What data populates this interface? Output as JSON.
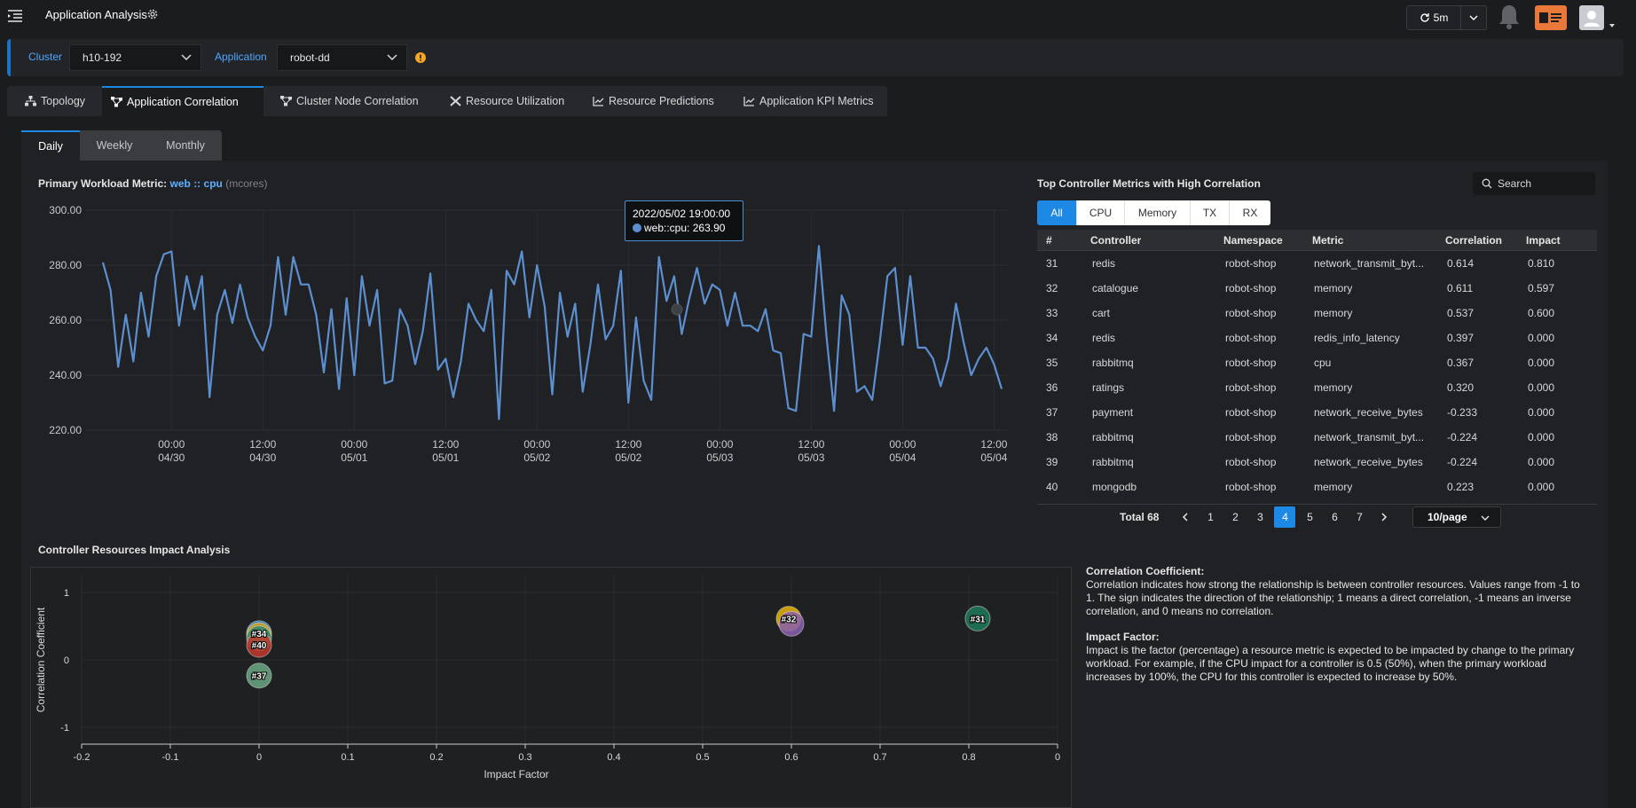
{
  "header": {
    "title": "Application Analysis",
    "refresh_label": "5m"
  },
  "filters": {
    "cluster_label": "Cluster",
    "cluster_value": "h10-192",
    "application_label": "Application",
    "application_value": "robot-dd"
  },
  "tabs": [
    {
      "label": "Topology",
      "icon": "topology-icon"
    },
    {
      "label": "Application Correlation",
      "icon": "correlation-icon",
      "active": true
    },
    {
      "label": "Cluster Node Correlation",
      "icon": "correlation-icon"
    },
    {
      "label": "Resource Utilization",
      "icon": "tools-icon"
    },
    {
      "label": "Resource Predictions",
      "icon": "line-chart-icon"
    },
    {
      "label": "Application KPI Metrics",
      "icon": "line-chart-icon"
    }
  ],
  "subtabs": [
    {
      "label": "Daily",
      "active": true
    },
    {
      "label": "Weekly"
    },
    {
      "label": "Monthly"
    }
  ],
  "primary_metric": {
    "label": "Primary Workload Metric:",
    "app": "web",
    "sep": "::",
    "metric": "cpu",
    "unit": "(mcores)"
  },
  "tooltip": {
    "time": "2022/05/02 19:00:00",
    "series": "web::cpu:",
    "value": "263.90"
  },
  "table": {
    "title": "Top Controller Metrics with High Correlation",
    "search_placeholder": "Search",
    "filter_buttons": [
      "All",
      "CPU",
      "Memory",
      "TX",
      "RX"
    ],
    "columns": [
      "#",
      "Controller",
      "Namespace",
      "Metric",
      "Correlation",
      "Impact"
    ],
    "rows": [
      [
        "31",
        "redis",
        "robot-shop",
        "network_transmit_byt...",
        "0.614",
        "0.810"
      ],
      [
        "32",
        "catalogue",
        "robot-shop",
        "memory",
        "0.611",
        "0.597"
      ],
      [
        "33",
        "cart",
        "robot-shop",
        "memory",
        "0.537",
        "0.600"
      ],
      [
        "34",
        "redis",
        "robot-shop",
        "redis_info_latency",
        "0.397",
        "0.000"
      ],
      [
        "35",
        "rabbitmq",
        "robot-shop",
        "cpu",
        "0.367",
        "0.000"
      ],
      [
        "36",
        "ratings",
        "robot-shop",
        "memory",
        "0.320",
        "0.000"
      ],
      [
        "37",
        "payment",
        "robot-shop",
        "network_receive_bytes",
        "-0.233",
        "0.000"
      ],
      [
        "38",
        "rabbitmq",
        "robot-shop",
        "network_transmit_byt...",
        "-0.224",
        "0.000"
      ],
      [
        "39",
        "rabbitmq",
        "robot-shop",
        "network_receive_bytes",
        "-0.224",
        "0.000"
      ],
      [
        "40",
        "mongodb",
        "robot-shop",
        "memory",
        "0.223",
        "0.000"
      ]
    ],
    "total_label": "Total 68",
    "pages": [
      "1",
      "2",
      "3",
      "4",
      "5",
      "6",
      "7"
    ],
    "current_page": "4",
    "page_size": "10/page"
  },
  "impact_section_title": "Controller Resources Impact Analysis",
  "explanation": {
    "corr_title": "Correlation Coefficient:",
    "corr_text": "Correlation indicates how strong the relationship is between controller resources. Values range from -1 to 1. The sign indicates the direction of the relationship; 1 means a direct correlation, -1 means an inverse correlation, and 0 means no correlation.",
    "impact_title": "Impact Factor:",
    "impact_text": "Impact is the factor (percentage) a resource metric is expected to be impacted by change to the primary workload. For example, if the CPU impact for a controller is 0.5 (50%), when the primary workload increases by 100%, the CPU for this controller is expected to increase by 50%."
  },
  "chart_data": [
    {
      "type": "line",
      "ylim": [
        220,
        300
      ],
      "yticks": [
        "220.00",
        "240.00",
        "260.00",
        "280.00",
        "300.00"
      ],
      "xticks": [
        [
          "00:00",
          "04/30"
        ],
        [
          "12:00",
          "04/30"
        ],
        [
          "00:00",
          "05/01"
        ],
        [
          "12:00",
          "05/01"
        ],
        [
          "00:00",
          "05/02"
        ],
        [
          "12:00",
          "05/02"
        ],
        [
          "00:00",
          "05/03"
        ],
        [
          "12:00",
          "05/03"
        ],
        [
          "00:00",
          "05/04"
        ],
        [
          "12:00",
          "05/04"
        ]
      ],
      "color": "#5b8fd0",
      "series": [
        {
          "values": [
            281,
            271,
            243,
            262,
            245,
            270,
            254,
            276,
            284,
            285,
            258,
            276,
            264,
            276,
            232,
            262,
            271,
            259,
            273,
            261,
            254,
            249,
            258,
            283,
            262,
            283,
            273,
            273,
            262,
            241,
            264,
            235,
            268,
            240,
            276,
            258,
            271,
            237,
            238,
            264,
            258,
            244,
            256,
            277,
            242,
            246,
            232,
            245,
            266,
            260,
            256,
            271,
            224,
            278,
            273,
            285,
            261,
            280,
            265,
            233,
            270,
            254,
            266,
            234,
            251,
            273,
            253,
            258,
            278,
            230,
            261,
            238,
            231,
            283,
            267,
            276,
            255,
            268,
            279,
            266,
            273,
            271,
            258,
            270,
            258,
            258,
            256,
            264,
            249,
            248,
            228,
            227,
            255,
            254,
            287,
            254,
            227,
            269,
            262,
            234,
            236,
            231,
            252,
            276,
            279,
            251,
            276,
            250,
            250,
            246,
            236,
            246,
            266,
            252,
            240,
            246,
            250,
            244,
            235
          ],
          "tick_spacing_points": 12,
          "first_tick_index": 9
        }
      ]
    },
    {
      "type": "scatter",
      "xlabel": "Impact Factor",
      "ylabel": "Correlation Coefficient",
      "xlim": [
        -0.2,
        0.9
      ],
      "ylim": [
        -1.25,
        1.25
      ],
      "xticks": [
        "-0.2",
        "-0.1",
        "0",
        "0.1",
        "0.2",
        "0.3",
        "0.4",
        "0.5",
        "0.6",
        "0.7",
        "0.8",
        "0"
      ],
      "yticks": [
        "1",
        "0",
        "-1"
      ],
      "points": [
        {
          "label": "#31",
          "x": 0.81,
          "y": 0.614,
          "color": "#1e7a5a"
        },
        {
          "label": "#32",
          "x": 0.597,
          "y": 0.611,
          "color": "#e8b400"
        },
        {
          "label": "#33",
          "x": 0.6,
          "y": 0.537,
          "color": "#8a5fb0"
        },
        {
          "label": "#34",
          "x": 0.0,
          "y": 0.397,
          "color": "#3a8fd0"
        },
        {
          "label": "#35",
          "x": 0.0,
          "y": 0.367,
          "color": "#d9a015"
        },
        {
          "label": "#36",
          "x": 0.0,
          "y": 0.32,
          "color": "#2e8a6a"
        },
        {
          "label": "#40",
          "x": 0.0,
          "y": 0.223,
          "color": "#c0392b"
        },
        {
          "label": "#37",
          "x": 0.0,
          "y": -0.233,
          "color": "#6aa882"
        }
      ],
      "show_labels": [
        "#31",
        "#32",
        "#34",
        "#40",
        "#37"
      ]
    }
  ]
}
